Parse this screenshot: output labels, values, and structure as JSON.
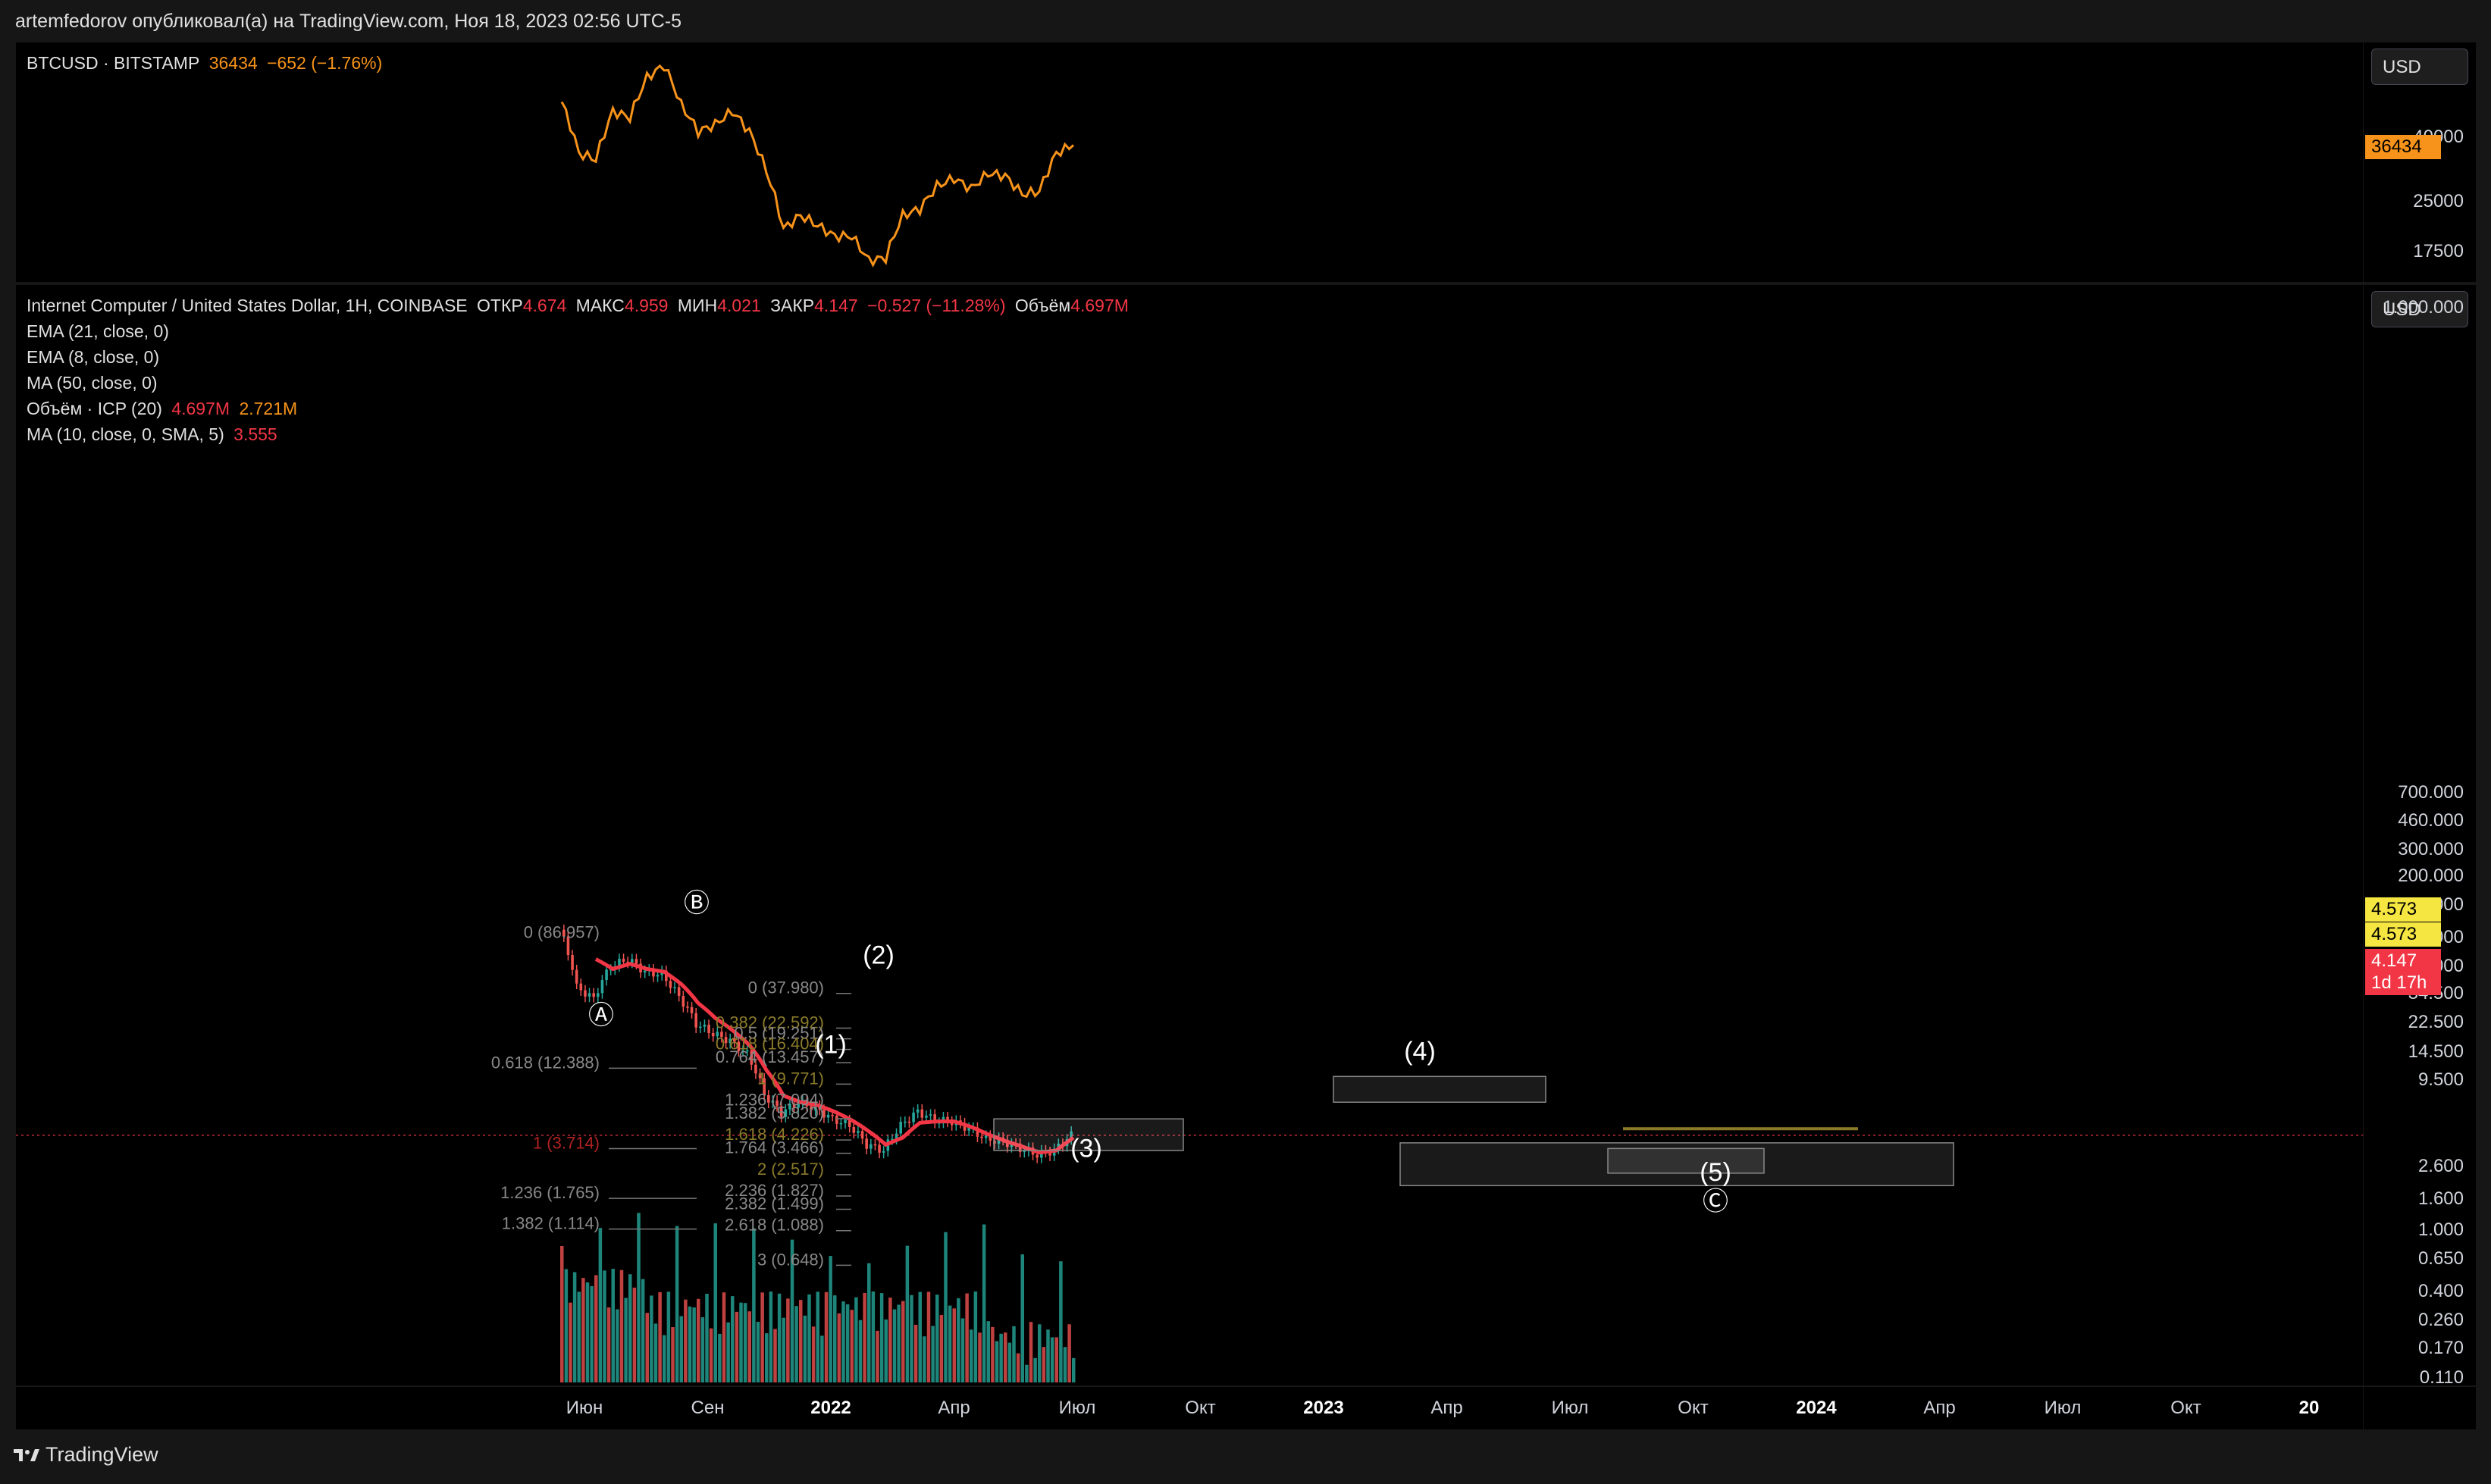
{
  "header": {
    "text": "artemfedorov опубликовал(а) на TradingView.com, Ноя 18, 2023 02:56 UTC-5"
  },
  "btc_pane": {
    "symbol": "BTCUSD · BITSTAMP",
    "price": "36434",
    "change": "−652 (−1.76%)",
    "currency": "USD",
    "last_tag": "36434",
    "ticks": [
      "40000",
      "25000",
      "17500"
    ]
  },
  "icp_pane": {
    "title": "Internet Computer / United States Dollar, 1H, COINBASE",
    "open_label": "ОТКР",
    "open": "4.674",
    "high_label": "МАКС",
    "high": "4.959",
    "low_label": "МИН",
    "low": "4.021",
    "close_label": "ЗАКР",
    "close": "4.147",
    "change": "−0.527 (−11.28%)",
    "vol_label": "Объём",
    "vol": "4.697M",
    "currency": "USD",
    "indicators": [
      {
        "name": "EMA (21, close, 0)",
        "v1": "",
        "v2": ""
      },
      {
        "name": "EMA (8, close, 0)",
        "v1": "",
        "v2": ""
      },
      {
        "name": "MA (50, close, 0)",
        "v1": "",
        "v2": ""
      },
      {
        "name": "Объём · ICP (20)",
        "v1": "4.697M",
        "v2": "2.721M"
      },
      {
        "name": "MA (10, close, 0, SMA, 5)",
        "v1": "3.555",
        "v2": ""
      }
    ],
    "ticks": [
      "1.000.000",
      "700.000",
      "460.000",
      "300.000",
      "200.000",
      "130.000",
      "80.000",
      "52.000",
      "34.500",
      "22.500",
      "14.500",
      "9.500",
      "2.600",
      "1.600",
      "1.000",
      "0.650",
      "0.400",
      "0.260",
      "0.170",
      "0.110"
    ],
    "tags": [
      {
        "text": "4.573",
        "color": "#f5e642"
      },
      {
        "text": "4.573",
        "color": "#f5e642"
      },
      {
        "text": "4.147",
        "color": "#f23645"
      },
      {
        "text": "1d 17h",
        "color": "#f23645"
      }
    ]
  },
  "time_axis": {
    "labels": [
      {
        "t": "Июн",
        "bold": false
      },
      {
        "t": "Сен",
        "bold": false
      },
      {
        "t": "2022",
        "bold": true
      },
      {
        "t": "Апр",
        "bold": false
      },
      {
        "t": "Июл",
        "bold": false
      },
      {
        "t": "Окт",
        "bold": false
      },
      {
        "t": "2023",
        "bold": true
      },
      {
        "t": "Апр",
        "bold": false
      },
      {
        "t": "Июл",
        "bold": false
      },
      {
        "t": "Окт",
        "bold": false
      },
      {
        "t": "2024",
        "bold": true
      },
      {
        "t": "Апр",
        "bold": false
      },
      {
        "t": "Июл",
        "bold": false
      },
      {
        "t": "Окт",
        "bold": false
      },
      {
        "t": "20",
        "bold": true
      }
    ]
  },
  "annotations": {
    "wave_labels": [
      "Ⓐ",
      "Ⓑ",
      "Ⓒ",
      "(1)",
      "(2)",
      "(3)",
      "(4)",
      "(5)"
    ],
    "fib_left": [
      {
        "text": "0 (86.957)",
        "color": "#888888"
      },
      {
        "text": "0.618 (12.388)",
        "color": "#888888"
      },
      {
        "text": "1 (3.714)",
        "color": "#b22222"
      },
      {
        "text": "1.236 (1.765)",
        "color": "#888888"
      },
      {
        "text": "1.382 (1.114)",
        "color": "#888888"
      }
    ],
    "fib_right": [
      {
        "text": "0 (37.980)",
        "color": "#888888"
      },
      {
        "text": "0.382 (22.592)",
        "color": "#8a7a2a"
      },
      {
        "text": "0.5 (19.251)",
        "color": "#888888"
      },
      {
        "text": "0.618 (16.404)",
        "color": "#8a7a2a"
      },
      {
        "text": "0.764 (13.457)",
        "color": "#888888"
      },
      {
        "text": "1 (9.771)",
        "color": "#8a7a2a"
      },
      {
        "text": "1.236 (7.094)",
        "color": "#888888"
      },
      {
        "text": "1.382 (5.820)",
        "color": "#888888"
      },
      {
        "text": "1.618 (4.226)",
        "color": "#8a7a2a"
      },
      {
        "text": "1.764 (3.466)",
        "color": "#888888"
      },
      {
        "text": "2 (2.517)",
        "color": "#8a7a2a"
      },
      {
        "text": "2.236 (1.827)",
        "color": "#888888"
      },
      {
        "text": "2.382 (1.499)",
        "color": "#888888"
      },
      {
        "text": "2.618 (1.088)",
        "color": "#888888"
      },
      {
        "text": "3 (0.648)",
        "color": "#888888"
      }
    ]
  },
  "footer": {
    "brand": "TradingView"
  },
  "colors": {
    "btc_line": "#f7931a",
    "ema": "#f23645",
    "up": "#26a69a",
    "down": "#ef5350"
  },
  "chart_data": [
    {
      "type": "line",
      "title": "BTCUSD · BITSTAMP",
      "ylabel": "USD",
      "log_scale": true,
      "x": [
        "2021-05",
        "2021-06",
        "2021-07",
        "2021-08",
        "2021-09",
        "2021-10",
        "2021-11",
        "2021-12",
        "2022-01",
        "2022-02",
        "2022-03",
        "2022-04",
        "2022-05",
        "2022-06",
        "2022-07",
        "2022-08",
        "2022-09",
        "2022-10",
        "2022-11",
        "2022-12",
        "2023-01",
        "2023-02",
        "2023-03",
        "2023-04",
        "2023-05",
        "2023-06",
        "2023-07",
        "2023-08",
        "2023-09",
        "2023-10",
        "2023-11"
      ],
      "values": [
        49000,
        34500,
        33000,
        46000,
        44000,
        58000,
        63000,
        48000,
        40000,
        42000,
        46000,
        40000,
        30500,
        20500,
        22500,
        21000,
        19500,
        19500,
        16500,
        16800,
        22500,
        23500,
        27500,
        29000,
        27000,
        30000,
        29500,
        26000,
        26500,
        34500,
        36434
      ],
      "ylim": [
        15000,
        70000
      ]
    },
    {
      "type": "candlestick",
      "title": "Internet Computer / United States Dollar, 1H, COINBASE",
      "ylabel": "USD",
      "log_scale": true,
      "x": [
        "2021-05",
        "2021-06",
        "2021-07",
        "2021-08",
        "2021-09",
        "2021-10",
        "2021-11",
        "2021-12",
        "2022-01",
        "2022-02",
        "2022-03",
        "2022-04",
        "2022-05",
        "2022-06",
        "2022-07",
        "2022-08",
        "2022-09",
        "2022-10",
        "2022-11",
        "2022-12",
        "2023-01",
        "2023-02",
        "2023-03",
        "2023-04",
        "2023-05",
        "2023-06",
        "2023-07",
        "2023-08",
        "2023-09",
        "2023-10",
        "2023-11"
      ],
      "close": [
        90,
        38,
        32,
        52,
        58,
        48,
        46,
        33,
        22,
        19,
        17,
        14,
        7.6,
        5.8,
        6.8,
        6.2,
        5.3,
        4.8,
        3.6,
        3.3,
        4.8,
        5.9,
        5.2,
        5.1,
        4.6,
        3.9,
        3.8,
        3.4,
        3.1,
        3.3,
        4.147
      ],
      "ema_21": [
        null,
        null,
        58,
        50,
        54,
        50,
        48,
        40,
        30,
        24,
        20,
        16,
        11,
        7.5,
        6.8,
        6.5,
        5.9,
        5.2,
        4.4,
        3.6,
        4.0,
        5.0,
        5.1,
        5.1,
        4.7,
        4.2,
        3.8,
        3.5,
        3.2,
        3.3,
        4.0
      ],
      "volume_series": "Объём · ICP (20)",
      "ylim": [
        0.1,
        1000
      ],
      "annotations": [
        "Ⓐ",
        "Ⓑ",
        "Ⓒ",
        "(1)",
        "(2)",
        "(3)",
        "(4)",
        "(5)"
      ]
    }
  ]
}
